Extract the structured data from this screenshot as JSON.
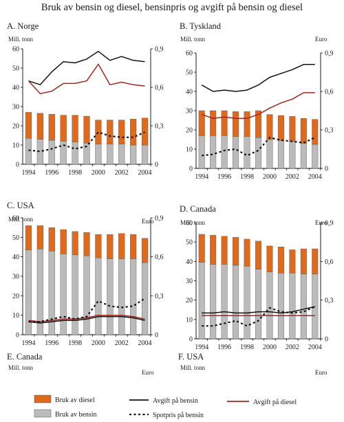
{
  "figure_title": "Bruk av bensin og diesel, bensinpris og avgift på bensin og diesel",
  "colors": {
    "diesel": "#E0691C",
    "bensin": "#BBBBBB",
    "avgift_bensin": "#111111",
    "avgift_diesel": "#A4241B",
    "spotpris": "#111111"
  },
  "legend": {
    "diesel": "Bruk av diesel",
    "bensin": "Bruk av bensin",
    "avgift_bensin": "Avgift på bensin",
    "avgift_diesel": "Avgift på diesel",
    "spotpris": "Spotpris på bensin"
  },
  "chart_data": [
    {
      "id": "A",
      "type": "bar",
      "title": "A. Norge",
      "left_unit": "Mill. tonn",
      "right_unit": "Euro",
      "ylim": [
        0,
        60
      ],
      "y2lim": [
        0,
        0.9
      ],
      "left_ticks": [
        "0",
        "10",
        "20",
        "30",
        "40",
        "50",
        "60"
      ],
      "right_ticks": [
        "0",
        "0,3",
        "0,6",
        "0,9"
      ],
      "x_ticks": [
        "1994",
        "1996",
        "1998",
        "2000",
        "2002",
        "2004"
      ],
      "categories": [
        "1994",
        "1995",
        "1996",
        "1997",
        "1998",
        "1999",
        "2000",
        "2001",
        "2002",
        "2003",
        "2004"
      ],
      "series": [
        {
          "name": "Bruk av bensin",
          "kind": "bar",
          "values": [
            13.5,
            13,
            12.5,
            12,
            11.5,
            11,
            10.5,
            10.5,
            10.5,
            10,
            10
          ]
        },
        {
          "name": "Bruk av diesel",
          "kind": "bar",
          "values": [
            13.5,
            13.5,
            13.5,
            13.5,
            14,
            14,
            12.5,
            12.5,
            12.5,
            13.5,
            14
          ]
        },
        {
          "name": "Avgift på bensin",
          "kind": "line",
          "axis": "right",
          "values": [
            0.65,
            0.62,
            0.72,
            0.8,
            0.79,
            0.82,
            0.88,
            0.81,
            0.84,
            0.81,
            0.8
          ]
        },
        {
          "name": "Avgift på diesel",
          "kind": "line",
          "axis": "right",
          "values": [
            0.65,
            0.55,
            0.57,
            0.63,
            0.63,
            0.65,
            0.78,
            0.62,
            0.64,
            0.62,
            0.61
          ]
        },
        {
          "name": "Spotpris på bensin",
          "kind": "line",
          "style": "dotted",
          "axis": "right",
          "values": [
            0.11,
            0.1,
            0.12,
            0.15,
            0.12,
            0.14,
            0.25,
            0.22,
            0.21,
            0.21,
            0.25
          ]
        }
      ]
    },
    {
      "id": "B",
      "type": "bar",
      "title": "B. Tyskland",
      "left_unit": "Mill. tonn",
      "right_unit": "Euro",
      "ylim": [
        0,
        60
      ],
      "y2lim": [
        0,
        0.9
      ],
      "left_ticks": [
        "0",
        "10",
        "20",
        "30",
        "40",
        "50",
        "60"
      ],
      "right_ticks": [
        "0",
        "0,3",
        "0,6",
        "0,9"
      ],
      "x_ticks": [
        "1994",
        "1996",
        "1998",
        "2000",
        "2002",
        "2004"
      ],
      "categories": [
        "1994",
        "1995",
        "1996",
        "1997",
        "1998",
        "1999",
        "2000",
        "2001",
        "2002",
        "2003",
        "2004"
      ],
      "series": [
        {
          "name": "Bruk av bensin",
          "kind": "bar",
          "values": [
            17,
            17,
            17,
            16.5,
            16.5,
            16,
            15,
            14.5,
            14,
            13,
            12.5
          ]
        },
        {
          "name": "Bruk av diesel",
          "kind": "bar",
          "values": [
            13,
            13,
            13,
            13,
            13,
            14,
            13,
            13,
            13,
            13,
            13
          ]
        },
        {
          "name": "Avgift på bensin",
          "kind": "line",
          "axis": "right",
          "values": [
            0.65,
            0.6,
            0.61,
            0.6,
            0.61,
            0.65,
            0.71,
            0.74,
            0.77,
            0.81,
            0.81
          ]
        },
        {
          "name": "Avgift på diesel",
          "kind": "line",
          "axis": "right",
          "values": [
            0.42,
            0.39,
            0.4,
            0.39,
            0.39,
            0.42,
            0.47,
            0.51,
            0.54,
            0.59,
            0.59
          ]
        },
        {
          "name": "Spotpris på bensin",
          "kind": "line",
          "style": "dotted",
          "axis": "right",
          "values": [
            0.1,
            0.11,
            0.14,
            0.15,
            0.1,
            0.14,
            0.24,
            0.22,
            0.21,
            0.2,
            0.24
          ]
        }
      ]
    },
    {
      "id": "C",
      "type": "bar",
      "title": "C. USA",
      "left_unit": "Mill. tonn",
      "right_unit": "Euro",
      "ylim": [
        0,
        60
      ],
      "y2lim": [
        0,
        0.9
      ],
      "left_ticks": [
        "0",
        "10",
        "20",
        "30",
        "40",
        "50",
        "60"
      ],
      "right_ticks": [
        "0",
        "0,3",
        "0,6",
        "0,9"
      ],
      "x_ticks": [
        "1994",
        "1996",
        "1998",
        "2000",
        "2002",
        "2004"
      ],
      "categories": [
        "1994",
        "1995",
        "1996",
        "1997",
        "1998",
        "1999",
        "2000",
        "2001",
        "2002",
        "2003",
        "2004"
      ],
      "series": [
        {
          "name": "Bruk av bensin",
          "kind": "bar",
          "values": [
            43.5,
            44,
            43,
            41.5,
            41,
            40.5,
            39.5,
            39,
            39,
            39,
            37
          ]
        },
        {
          "name": "Bruk av diesel",
          "kind": "bar",
          "values": [
            12.5,
            12,
            12,
            12.5,
            12,
            12,
            12,
            12.5,
            13,
            12.5,
            12.5
          ]
        },
        {
          "name": "Avgift på bensin",
          "kind": "line",
          "axis": "right",
          "values": [
            0.1,
            0.09,
            0.1,
            0.11,
            0.11,
            0.12,
            0.14,
            0.14,
            0.14,
            0.13,
            0.11
          ]
        },
        {
          "name": "Avgift på diesel",
          "kind": "line",
          "axis": "right",
          "values": [
            0.11,
            0.1,
            0.11,
            0.12,
            0.12,
            0.13,
            0.15,
            0.15,
            0.15,
            0.14,
            0.12
          ]
        },
        {
          "name": "Spotpris på bensin",
          "kind": "line",
          "style": "dotted",
          "axis": "right",
          "values": [
            0.1,
            0.1,
            0.12,
            0.14,
            0.12,
            0.14,
            0.26,
            0.22,
            0.21,
            0.22,
            0.28
          ]
        }
      ]
    },
    {
      "id": "D",
      "type": "bar",
      "title": "D. Canada",
      "left_unit": "Mill. tonn",
      "right_unit": "Euro",
      "ylim": [
        0,
        60
      ],
      "y2lim": [
        0,
        0.9
      ],
      "left_ticks": [
        "0",
        "10",
        "20",
        "30",
        "40",
        "50",
        "60"
      ],
      "right_ticks": [
        "0",
        "0,3",
        "0,6",
        "0,9"
      ],
      "x_ticks": [
        "1994",
        "1996",
        "1998",
        "2000",
        "2002",
        "2004"
      ],
      "categories": [
        "1994",
        "1995",
        "1996",
        "1997",
        "1998",
        "1999",
        "2000",
        "2001",
        "2002",
        "2003",
        "2004"
      ],
      "series": [
        {
          "name": "Bruk av bensin",
          "kind": "bar",
          "values": [
            39.5,
            38.5,
            38.5,
            38,
            37.5,
            36,
            34.5,
            34,
            34,
            33.5,
            33.5
          ]
        },
        {
          "name": "Bruk av diesel",
          "kind": "bar",
          "values": [
            14.5,
            15,
            14.5,
            14.5,
            14,
            14.5,
            13.5,
            13.5,
            12,
            13,
            13
          ]
        },
        {
          "name": "Avgift på bensin",
          "kind": "line",
          "axis": "right",
          "values": [
            0.2,
            0.2,
            0.21,
            0.2,
            0.2,
            0.21,
            0.21,
            0.2,
            0.21,
            0.23,
            0.25
          ]
        },
        {
          "name": "Avgift på diesel",
          "kind": "line",
          "axis": "right",
          "values": [
            0.18,
            0.18,
            0.18,
            0.18,
            0.18,
            0.18,
            0.18,
            0.18,
            0.18,
            0.18,
            0.18
          ]
        },
        {
          "name": "Spotpris på bensin",
          "kind": "line",
          "style": "dotted",
          "axis": "right",
          "values": [
            0.1,
            0.1,
            0.12,
            0.14,
            0.1,
            0.14,
            0.24,
            0.21,
            0.2,
            0.21,
            0.25
          ]
        }
      ]
    },
    {
      "id": "E",
      "type": "bar",
      "title": "E. Canada",
      "left_unit": "Mill. tonn",
      "right_unit": "Euro",
      "categories": [],
      "series": []
    },
    {
      "id": "F",
      "type": "bar",
      "title": "F. USA",
      "left_unit": "Mill. tonn",
      "right_unit": "Euro",
      "categories": [],
      "series": []
    }
  ]
}
